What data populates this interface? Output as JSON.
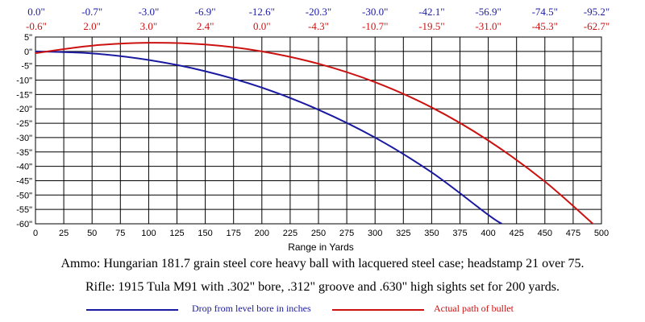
{
  "chart_data": {
    "type": "line",
    "xlabel": "Range in Yards",
    "ylabel": "",
    "xlim": [
      0,
      500
    ],
    "ylim": [
      -60,
      5
    ],
    "x_ticks": [
      0,
      25,
      50,
      75,
      100,
      125,
      150,
      175,
      200,
      225,
      250,
      275,
      300,
      325,
      350,
      375,
      400,
      425,
      450,
      475,
      500
    ],
    "y_ticks": [
      5,
      0,
      -5,
      -10,
      -15,
      -20,
      -25,
      -30,
      -35,
      -40,
      -45,
      -50,
      -55,
      -60
    ],
    "y_tick_labels": [
      "5\"",
      "0\"",
      "-5\"",
      "-10\"",
      "-15\"",
      "-20\"",
      "-25\"",
      "-30\"",
      "-35\"",
      "-40\"",
      "-45\"",
      "-50\"",
      "-55\"",
      "-60\""
    ],
    "grid": true,
    "top_labels_drop": [
      "0.0\"",
      "-0.7\"",
      "-3.0\"",
      "-6.9\"",
      "-12.6\"",
      "-20.3\"",
      "-30.0\"",
      "-42.1\"",
      "-56.9\"",
      "-74.5\"",
      "-95.2\""
    ],
    "top_labels_path": [
      "-0.6\"",
      "2.0\"",
      "3.0\"",
      "2.4\"",
      "0.0\"",
      "-4.3\"",
      "-10.7\"",
      "-19.5\"",
      "-31.0\"",
      "-45.3\"",
      "-62.7\""
    ],
    "top_labels_x": [
      0,
      50,
      100,
      150,
      200,
      250,
      300,
      350,
      400,
      450,
      500
    ],
    "series": [
      {
        "name": "Drop from level bore in inches",
        "color": "#1a1aa0",
        "x": [
          0,
          50,
          100,
          150,
          200,
          250,
          300,
          350,
          400,
          412
        ],
        "values": [
          0.0,
          -0.7,
          -3.0,
          -6.9,
          -12.6,
          -20.3,
          -30.0,
          -42.1,
          -56.9,
          -60
        ]
      },
      {
        "name": "Actual path of bullet",
        "color": "#cc1111",
        "x": [
          0,
          50,
          100,
          150,
          200,
          250,
          300,
          350,
          400,
          450,
          500
        ],
        "values": [
          -0.6,
          2.0,
          3.0,
          2.4,
          0.0,
          -4.3,
          -10.7,
          -19.5,
          -31.0,
          -45.3,
          -62.7
        ]
      }
    ]
  },
  "notes": {
    "ammo": "Ammo:  Hungarian 181.7 grain steel core heavy ball with lacquered steel case; headstamp 21 over 75.",
    "rifle": "Rifle:  1915 Tula M91 with .302\" bore, .312\" groove and .630\" high sights set for 200 yards."
  },
  "legend": {
    "drop_label": "Drop from level bore in inches",
    "drop_color": "#1a1aa0",
    "path_label": "Actual path of bullet",
    "path_color": "#cc1111"
  }
}
